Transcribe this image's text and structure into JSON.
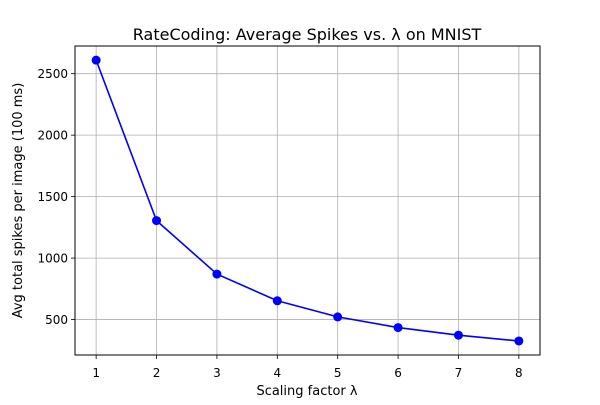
{
  "chart_data": {
    "type": "line",
    "title": "RateCoding: Average Spikes vs. λ on MNIST",
    "xlabel": "Scaling factor λ",
    "ylabel": "Avg total spikes per image (100 ms)",
    "x": [
      1,
      2,
      3,
      4,
      5,
      6,
      7,
      8
    ],
    "series": [
      {
        "values": [
          2610,
          1305,
          870,
          653,
          522,
          435,
          373,
          326
        ]
      }
    ],
    "xlim": [
      0.65,
      8.35
    ],
    "ylim": [
      212,
      2725
    ],
    "xticks": [
      1,
      2,
      3,
      4,
      5,
      6,
      7,
      8
    ],
    "yticks": [
      500,
      1000,
      1500,
      2000,
      2500
    ],
    "grid": true,
    "line_color": "#0000ff",
    "marker": "circle"
  }
}
